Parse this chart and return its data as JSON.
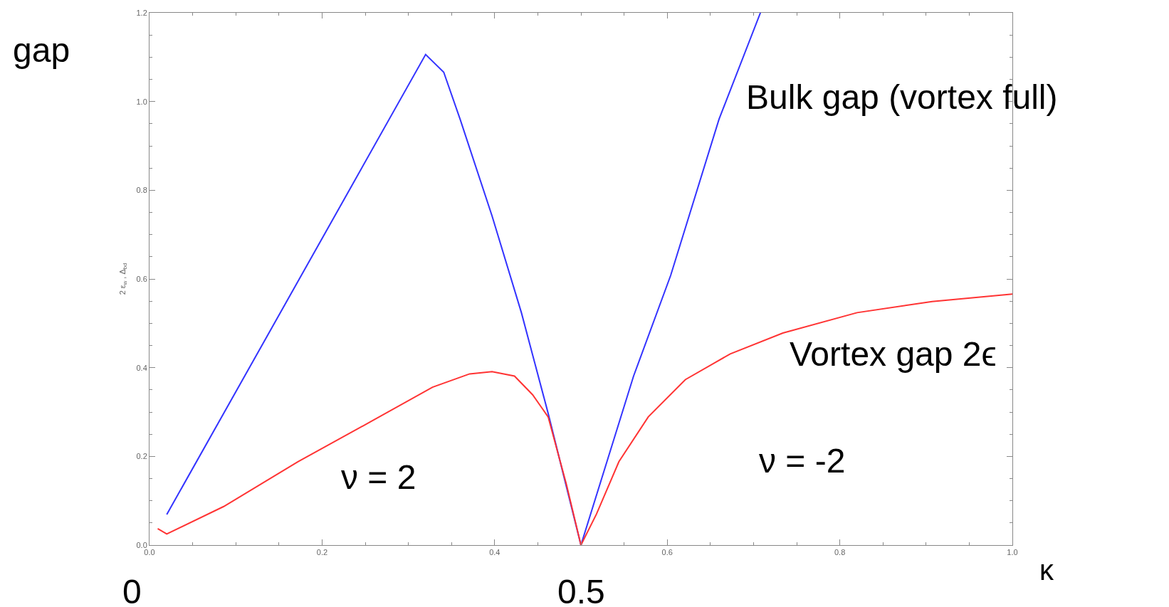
{
  "chart_data": {
    "type": "line",
    "ylabel": "2 ε$_{w}$ , Δ$_{bd}$",
    "xlabel": "κ",
    "xlim": [
      0,
      1.0
    ],
    "ylim": [
      0,
      1.2
    ],
    "xticks": [
      {
        "value": 0,
        "label": "0.0"
      },
      0.2,
      0.4,
      0.6,
      0.8,
      {
        "value": 1.0,
        "label": "1.0"
      }
    ],
    "yticks": [
      {
        "value": 0,
        "label": "0.0"
      },
      0.2,
      0.4,
      0.6,
      0.8,
      {
        "value": 1.0,
        "label": "1.0"
      },
      1.2
    ],
    "marker": "none",
    "line_style": "solid",
    "series": [
      {
        "color": "#3333ff",
        "x": [
          0.02,
          0.32,
          0.341,
          0.36,
          0.397,
          0.431,
          0.462,
          0.5,
          0.561,
          0.604,
          0.66,
          0.708
        ],
        "values": [
          0.069,
          1.106,
          1.066,
          0.96,
          0.742,
          0.524,
          0.297,
          0.0,
          0.381,
          0.608,
          0.96,
          1.2
        ]
      },
      {
        "color": "#ff3333",
        "x": [
          0.0095,
          0.02,
          0.086,
          0.172,
          0.258,
          0.328,
          0.371,
          0.397,
          0.423,
          0.444,
          0.462,
          0.483,
          0.5,
          0.518,
          0.544,
          0.578,
          0.621,
          0.673,
          0.734,
          0.82,
          0.907,
          1.0
        ],
        "values": [
          0.037,
          0.025,
          0.087,
          0.188,
          0.28,
          0.356,
          0.386,
          0.391,
          0.381,
          0.339,
          0.289,
          0.138,
          0.0,
          0.07,
          0.188,
          0.289,
          0.373,
          0.431,
          0.478,
          0.524,
          0.549,
          0.566
        ]
      }
    ],
    "annotations": [
      "Bulk gap (vortex full)",
      "Vortex gap 2ϵ",
      "ν = 2",
      "ν = -2",
      "gap",
      "0",
      "0.5"
    ]
  }
}
